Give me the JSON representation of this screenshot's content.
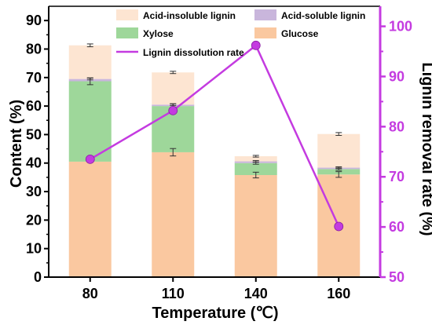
{
  "chart_data": {
    "type": "bar",
    "stacked": true,
    "categories": [
      "80",
      "110",
      "140",
      "160"
    ],
    "xlabel": "Temperature (℃)",
    "ylabel": "Content (%)",
    "ylim": [
      0,
      95
    ],
    "yticks": [
      0,
      10,
      20,
      30,
      40,
      50,
      60,
      70,
      80,
      90
    ],
    "y2label": "Lignin removal rate (%)",
    "y2lim": [
      50,
      104
    ],
    "y2ticks": [
      50,
      60,
      70,
      80,
      90,
      100
    ],
    "grid": false,
    "legend_position": "top",
    "series": [
      {
        "name": "Glucose",
        "values": [
          40.5,
          43.8,
          35.8,
          36.0
        ],
        "errors": [
          0,
          1.3,
          1.0,
          1.0
        ],
        "color": "#FAC8A0"
      },
      {
        "name": "Xylose",
        "values": [
          28.2,
          16.2,
          4.2,
          1.9
        ],
        "errors": [
          1.2,
          0.8,
          0.4,
          0.4
        ],
        "color": "#9ED79A"
      },
      {
        "name": "Acid-soluble lignin",
        "values": [
          0.8,
          0.5,
          0.6,
          0.5
        ],
        "errors": [
          0.3,
          0.3,
          0.3,
          0.3
        ],
        "color": "#C9B6DC"
      },
      {
        "name": "Acid-insoluble lignin",
        "values": [
          11.8,
          11.3,
          1.8,
          11.8
        ],
        "errors": [
          0.5,
          0.4,
          0.3,
          0.5
        ],
        "color": "#FDE5D2"
      }
    ],
    "line_series": {
      "name": "Lignin dissolution rate",
      "axis": "right",
      "values": [
        73.5,
        83.2,
        96.2,
        60.1
      ],
      "color": "#C43BE0"
    },
    "colors": {
      "right_axis": "#C43BE0",
      "left_axis": "#000000"
    }
  }
}
